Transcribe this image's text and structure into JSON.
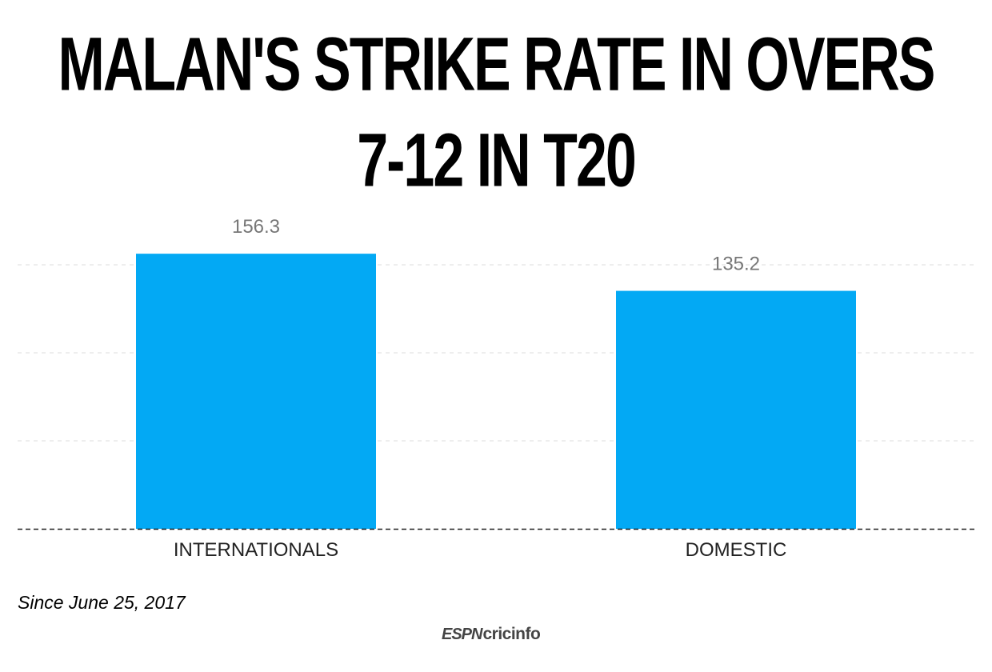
{
  "title": {
    "line1": "MALAN'S STRIKE RATE IN OVERS",
    "line2": "7-12 IN T20"
  },
  "footnote": "Since June 25, 2017",
  "logo": {
    "espn": "ESPN",
    "cricinfo": "cricinfo"
  },
  "colors": {
    "bar": "#03a9f4",
    "value_label": "#777777",
    "category_label": "#222222",
    "grid": "#dddddd",
    "baseline": "#222222"
  },
  "chart_data": {
    "type": "bar",
    "categories": [
      "INTERNATIONALS",
      "DOMESTIC"
    ],
    "values": [
      156.3,
      135.2
    ],
    "data_labels": [
      "156.3",
      "135.2"
    ],
    "title": "MALAN'S STRIKE RATE IN OVERS 7-12 IN T20",
    "ylim": [
      0,
      150
    ],
    "grid": true,
    "grid_values": [
      50,
      100,
      150
    ]
  }
}
